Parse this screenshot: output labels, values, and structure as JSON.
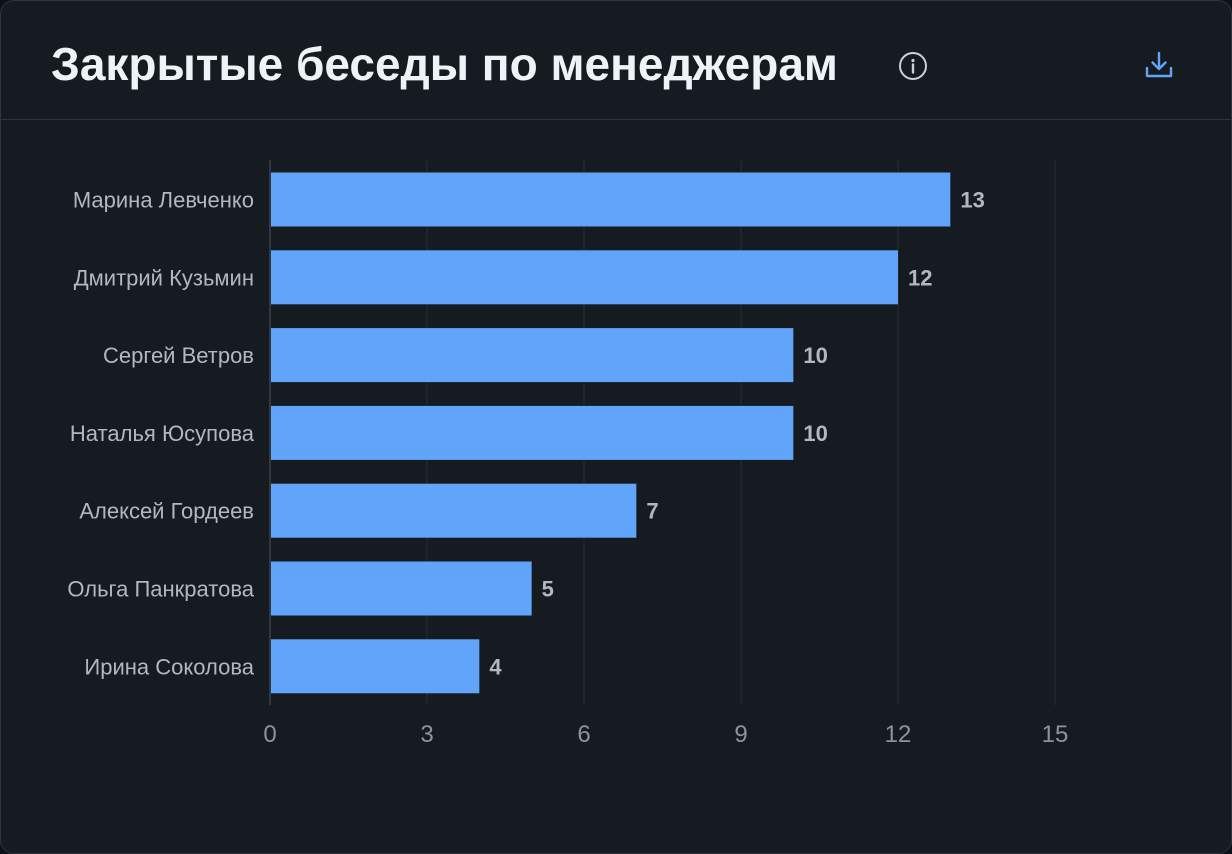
{
  "header": {
    "title": "Закрытые беседы по менеджерам",
    "info_icon": "info-circle-icon",
    "download_icon": "download-icon"
  },
  "colors": {
    "bar": "#60a5fa",
    "card_bg": "#161b22",
    "grid": "#262c35",
    "axis": "#3a414b",
    "text": "#b1b8c0",
    "tick": "#8b949e",
    "icon_info": "#c9d1d9",
    "icon_download": "#60a5fa"
  },
  "chart_data": {
    "type": "bar",
    "orientation": "horizontal",
    "title": "Закрытые беседы по менеджерам",
    "xlabel": "",
    "ylabel": "",
    "categories": [
      "Марина Левченко",
      "Дмитрий Кузьмин",
      "Сергей Ветров",
      "Наталья Юсупова",
      "Алексей Гордеев",
      "Ольга Панкратова",
      "Ирина Соколова"
    ],
    "values": [
      13,
      12,
      10,
      10,
      7,
      5,
      4
    ],
    "xlim": [
      0,
      15
    ],
    "xticks": [
      0,
      3,
      6,
      9,
      12,
      15
    ],
    "grid": true,
    "data_labels": true
  }
}
